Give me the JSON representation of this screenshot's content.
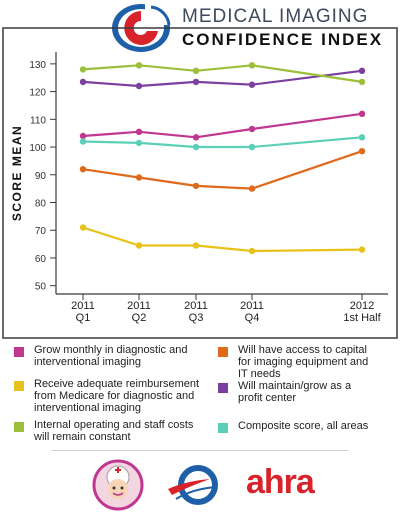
{
  "header": {
    "title_line1": "MEDICAL IMAGING",
    "title_line2": "CONFIDENCE INDEX",
    "logo_icon": "medical-imaging-logo"
  },
  "footer": {
    "logo_left": "nurse-mascot-logo",
    "logo_center": "swoosh-circle-logo",
    "brand_text": "ahra",
    "brand_color": "#d8232a"
  },
  "chart_data": {
    "type": "line",
    "ylabel": "SCORE MEAN",
    "xlabel": "",
    "ylim": [
      47,
      135
    ],
    "yticks": [
      50,
      60,
      70,
      80,
      90,
      100,
      110,
      120,
      130
    ],
    "categories": [
      "2011 Q1",
      "2011 Q2",
      "2011 Q3",
      "2011 Q4",
      "2012 1st Half"
    ],
    "category_lines": [
      [
        "2011",
        "Q1"
      ],
      [
        "2011",
        "Q2"
      ],
      [
        "2011",
        "Q3"
      ],
      [
        "2011",
        "Q4"
      ],
      [
        "2012",
        "1st Half"
      ]
    ],
    "grid": false,
    "legend_position": "bottom",
    "series": [
      {
        "name": "Grow monthly in diagnostic and interventional imaging",
        "color": "#c0378f",
        "values": [
          104,
          105.5,
          103.5,
          106.5,
          112
        ]
      },
      {
        "name": "Will have access to capital for imaging equipment and IT needs",
        "color": "#e06a1b",
        "values": [
          92,
          89,
          86,
          85,
          98.5
        ]
      },
      {
        "name": "Receive adequate reimbursement from Medicare for diagnostic and interventional imaging",
        "color": "#e8c21a",
        "values": [
          71,
          64.5,
          64.5,
          62.5,
          63
        ]
      },
      {
        "name": "Will maintain/grow as a profit center",
        "color": "#7b3fa0",
        "values": [
          123.5,
          122,
          123.5,
          122.5,
          127.5
        ]
      },
      {
        "name": "Internal operating and staff costs will remain constant",
        "color": "#9bbf3a",
        "values": [
          128,
          129.5,
          127.5,
          129.5,
          123.5
        ]
      },
      {
        "name": "Composite score, all areas",
        "color": "#5ccfb8",
        "values": [
          102,
          101.5,
          100,
          100,
          103.5
        ]
      }
    ]
  },
  "legend": {
    "items": [
      {
        "label": "Grow monthly in diagnostic and interventional imaging",
        "color": "#c0378f"
      },
      {
        "label": "Will have access to capital for imaging equipment and IT needs",
        "color": "#e06a1b"
      },
      {
        "label": "Receive adequate reimbursement from Medicare for diagnostic and interventional imaging",
        "color": "#e8c21a"
      },
      {
        "label": "Will maintain/grow as a profit center",
        "color": "#7b3fa0"
      },
      {
        "label": "Internal operating and staff costs will remain constant",
        "color": "#9bbf3a"
      },
      {
        "label": "Composite score, all areas",
        "color": "#5ccfb8"
      }
    ]
  }
}
